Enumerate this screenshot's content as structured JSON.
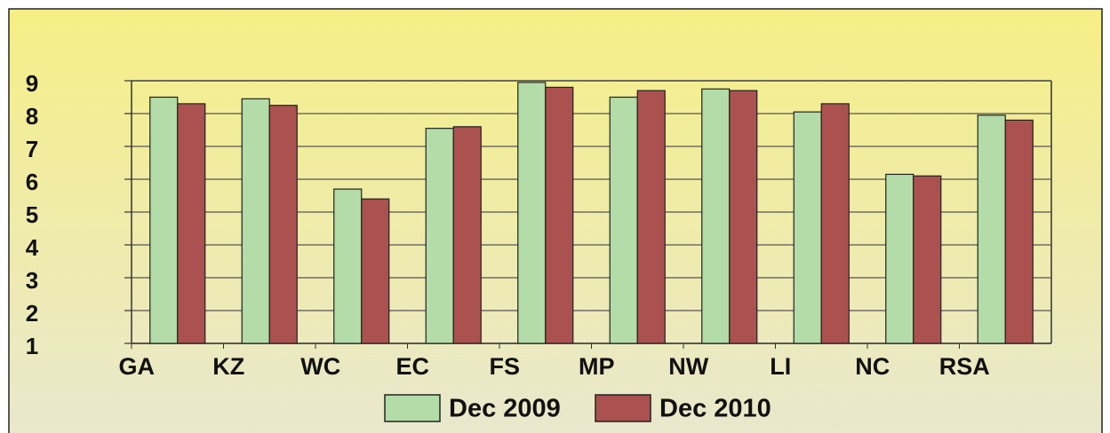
{
  "chart_data": {
    "type": "bar",
    "categories": [
      "GA",
      "KZ",
      "WC",
      "EC",
      "FS",
      "MP",
      "NW",
      "LI",
      "NC",
      "RSA"
    ],
    "series": [
      {
        "name": "Dec 2009",
        "color": "#b3dca8",
        "values": [
          8.5,
          8.45,
          5.7,
          7.55,
          8.95,
          8.5,
          8.75,
          8.05,
          6.15,
          7.95
        ]
      },
      {
        "name": "Dec 2010",
        "color": "#ab5150",
        "values": [
          8.3,
          8.25,
          5.4,
          7.6,
          8.8,
          8.7,
          8.7,
          8.3,
          6.1,
          7.8
        ]
      }
    ],
    "ylim": [
      1,
      9
    ],
    "yticks": [
      1,
      2,
      3,
      4,
      5,
      6,
      7,
      8,
      9
    ],
    "grid": true
  }
}
